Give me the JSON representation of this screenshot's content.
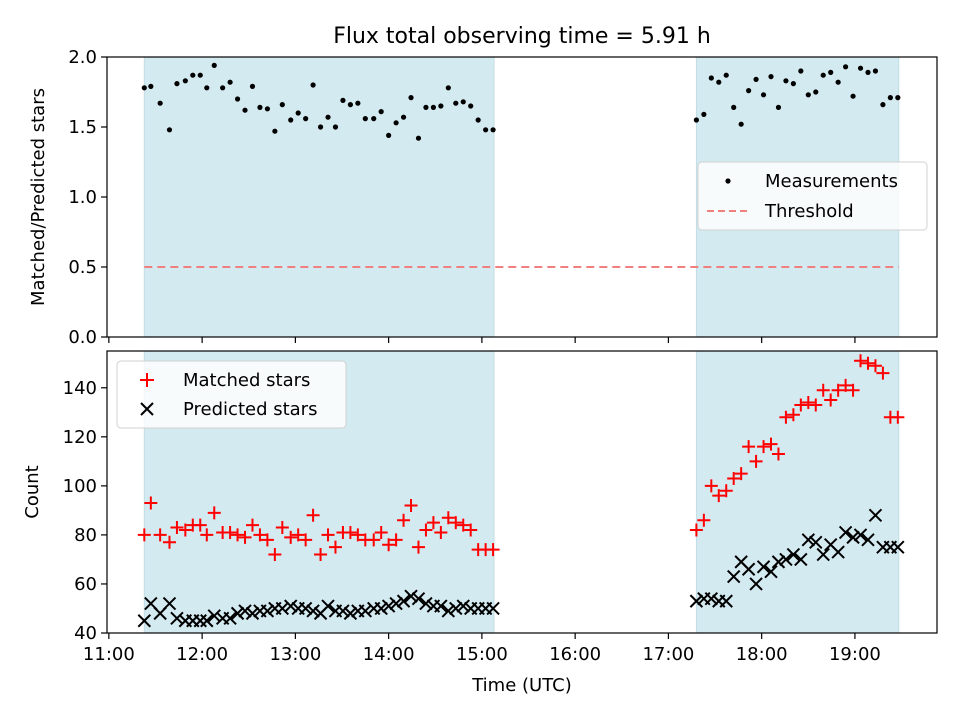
{
  "figure": {
    "title": "Flux total observing time = 5.91 h",
    "xlabel": "Time (UTC)",
    "x_ticks": [
      "11:00",
      "12:00",
      "13:00",
      "14:00",
      "15:00",
      "16:00",
      "17:00",
      "18:00",
      "19:00"
    ],
    "x_range_hours": [
      10.98,
      19.88
    ],
    "shaded_intervals_hours": [
      [
        11.38,
        15.13
      ],
      [
        17.3,
        19.47
      ]
    ],
    "shade_color": "#d4eaf1"
  },
  "chart_data": [
    {
      "type": "scatter",
      "ylabel": "Matched/Predicted stars",
      "ylim": [
        0,
        2.0
      ],
      "y_ticks": [
        "0.0",
        "0.5",
        "1.0",
        "1.5",
        "2.0"
      ],
      "legend_placement": "center-right",
      "series": [
        {
          "name": "Measurements",
          "marker": "dot",
          "color": "#000000",
          "x": [
            11.38,
            11.45,
            11.55,
            11.65,
            11.73,
            11.82,
            11.9,
            11.98,
            12.05,
            12.13,
            12.22,
            12.3,
            12.38,
            12.46,
            12.54,
            12.62,
            12.7,
            12.78,
            12.86,
            12.95,
            13.03,
            13.11,
            13.19,
            13.27,
            13.35,
            13.43,
            13.51,
            13.59,
            13.67,
            13.75,
            13.84,
            13.92,
            14.0,
            14.08,
            14.16,
            14.24,
            14.32,
            14.4,
            14.48,
            14.56,
            14.64,
            14.72,
            14.8,
            14.88,
            14.96,
            15.04,
            15.12,
            17.3,
            17.38,
            17.46,
            17.54,
            17.62,
            17.7,
            17.78,
            17.86,
            17.94,
            18.02,
            18.1,
            18.18,
            18.26,
            18.34,
            18.42,
            18.5,
            18.58,
            18.66,
            18.74,
            18.82,
            18.9,
            18.98,
            19.06,
            19.14,
            19.22,
            19.3,
            19.38,
            19.46
          ],
          "y": [
            1.78,
            1.79,
            1.67,
            1.48,
            1.81,
            1.83,
            1.87,
            1.87,
            1.78,
            1.94,
            1.78,
            1.82,
            1.7,
            1.62,
            1.79,
            1.64,
            1.63,
            1.47,
            1.66,
            1.55,
            1.6,
            1.56,
            1.8,
            1.5,
            1.57,
            1.5,
            1.69,
            1.66,
            1.67,
            1.56,
            1.56,
            1.61,
            1.44,
            1.53,
            1.57,
            1.71,
            1.42,
            1.64,
            1.64,
            1.65,
            1.78,
            1.67,
            1.68,
            1.65,
            1.55,
            1.48,
            1.48,
            1.55,
            1.59,
            1.85,
            1.82,
            1.87,
            1.64,
            1.52,
            1.76,
            1.84,
            1.73,
            1.86,
            1.64,
            1.83,
            1.81,
            1.9,
            1.73,
            1.75,
            1.87,
            1.89,
            1.82,
            1.93,
            1.72,
            1.92,
            1.89,
            1.9,
            1.66,
            1.71,
            1.71
          ]
        },
        {
          "name": "Threshold",
          "marker": "dashed-line",
          "color": "#f08080",
          "x": [
            11.38,
            19.47
          ],
          "y": [
            0.5,
            0.5
          ]
        }
      ]
    },
    {
      "type": "scatter",
      "ylabel": "Count",
      "ylim": [
        40,
        155
      ],
      "y_ticks": [
        "40",
        "60",
        "80",
        "100",
        "120",
        "140"
      ],
      "legend_placement": "top-left",
      "series": [
        {
          "name": "Matched stars",
          "marker": "plus",
          "color": "#ff0000",
          "x": [
            11.38,
            11.45,
            11.55,
            11.65,
            11.73,
            11.82,
            11.9,
            11.98,
            12.05,
            12.13,
            12.22,
            12.3,
            12.38,
            12.46,
            12.54,
            12.62,
            12.7,
            12.78,
            12.86,
            12.95,
            13.03,
            13.11,
            13.19,
            13.27,
            13.35,
            13.43,
            13.51,
            13.59,
            13.67,
            13.75,
            13.84,
            13.92,
            14.0,
            14.08,
            14.16,
            14.24,
            14.32,
            14.4,
            14.48,
            14.56,
            14.64,
            14.72,
            14.8,
            14.88,
            14.96,
            15.04,
            15.12,
            17.3,
            17.38,
            17.46,
            17.54,
            17.62,
            17.7,
            17.78,
            17.86,
            17.94,
            18.02,
            18.1,
            18.18,
            18.26,
            18.34,
            18.42,
            18.5,
            18.58,
            18.66,
            18.74,
            18.82,
            18.9,
            18.98,
            19.06,
            19.14,
            19.22,
            19.3,
            19.38,
            19.46
          ],
          "y": [
            80,
            93,
            80,
            77,
            83,
            82,
            84,
            84,
            80,
            89,
            81,
            81,
            80,
            79,
            84,
            80,
            78,
            72,
            83,
            79,
            80,
            78,
            88,
            72,
            80,
            75,
            81,
            81,
            80,
            78,
            78,
            81,
            76,
            78,
            86,
            92,
            75,
            82,
            85,
            81,
            87,
            85,
            84,
            82,
            74,
            74,
            74,
            82,
            86,
            100,
            96,
            98,
            103,
            105,
            116,
            110,
            116,
            117,
            113,
            128,
            129,
            133,
            134,
            133,
            139,
            135,
            139,
            141,
            139,
            151,
            150,
            149,
            146,
            128,
            128
          ]
        },
        {
          "name": "Predicted stars",
          "marker": "x",
          "color": "#000000",
          "x": [
            11.38,
            11.45,
            11.55,
            11.65,
            11.73,
            11.82,
            11.9,
            11.98,
            12.05,
            12.13,
            12.22,
            12.3,
            12.38,
            12.46,
            12.54,
            12.62,
            12.7,
            12.78,
            12.86,
            12.95,
            13.03,
            13.11,
            13.19,
            13.27,
            13.35,
            13.43,
            13.51,
            13.59,
            13.67,
            13.75,
            13.84,
            13.92,
            14.0,
            14.08,
            14.16,
            14.24,
            14.32,
            14.4,
            14.48,
            14.56,
            14.64,
            14.72,
            14.8,
            14.88,
            14.96,
            15.04,
            15.12,
            17.3,
            17.38,
            17.46,
            17.54,
            17.62,
            17.7,
            17.78,
            17.86,
            17.94,
            18.02,
            18.1,
            18.18,
            18.26,
            18.34,
            18.42,
            18.5,
            18.58,
            18.66,
            18.74,
            18.82,
            18.9,
            18.98,
            19.06,
            19.14,
            19.22,
            19.3,
            19.38,
            19.46
          ],
          "y": [
            45,
            52,
            48,
            52,
            46,
            45,
            45,
            45,
            45,
            47,
            46,
            46,
            48,
            49,
            48,
            49,
            49,
            50,
            50,
            51,
            50,
            50,
            49,
            48,
            51,
            49,
            49,
            48,
            49,
            49,
            50,
            50,
            51,
            52,
            53,
            55,
            54,
            52,
            51,
            51,
            49,
            50,
            51,
            50,
            50,
            50,
            50,
            53,
            54,
            54,
            53,
            53,
            63,
            69,
            66,
            60,
            67,
            65,
            69,
            70,
            72,
            70,
            78,
            77,
            72,
            76,
            73,
            81,
            79,
            80,
            78,
            88,
            75,
            75,
            75
          ]
        }
      ]
    }
  ]
}
